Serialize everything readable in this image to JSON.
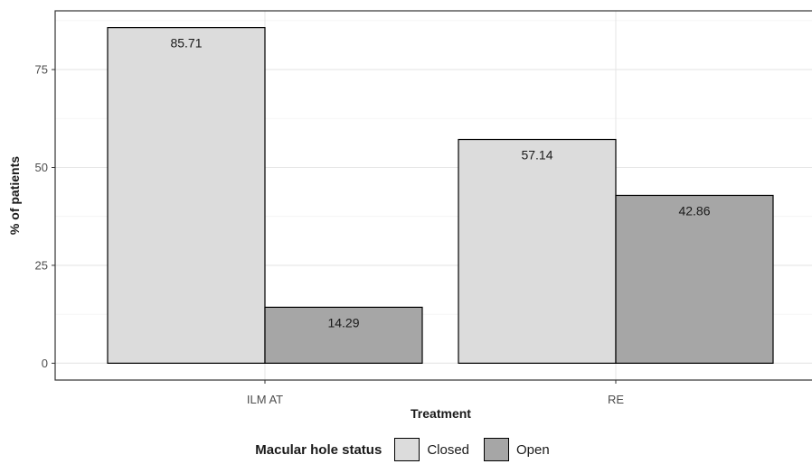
{
  "chart_data": {
    "type": "bar",
    "categories": [
      "ILM AT",
      "RE"
    ],
    "series": [
      {
        "name": "Closed",
        "values": [
          85.71,
          57.14
        ],
        "color": "#dcdcdc"
      },
      {
        "name": "Open",
        "values": [
          14.29,
          42.86
        ],
        "color": "#a6a6a6"
      }
    ],
    "data_labels": [
      [
        "85.71",
        "57.14"
      ],
      [
        "14.29",
        "42.86"
      ]
    ],
    "xlabel": "Treatment",
    "ylabel": "% of patients",
    "yticks": [
      0,
      25,
      50,
      75
    ],
    "ytick_labels": [
      "0",
      "25",
      "50",
      "75"
    ],
    "ylim": [
      -4.3,
      90
    ],
    "grid": true,
    "legend": {
      "title": "Macular hole status",
      "position": "bottom"
    }
  }
}
